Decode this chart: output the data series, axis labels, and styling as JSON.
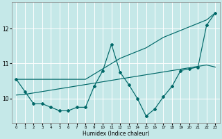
{
  "xlabel": "Humidex (Indice chaleur)",
  "background_color": "#c5e8e8",
  "grid_color": "#ffffff",
  "line_color": "#006868",
  "x_values": [
    0,
    1,
    2,
    3,
    4,
    5,
    6,
    7,
    8,
    9,
    10,
    11,
    12,
    13,
    14,
    15,
    16,
    17,
    18,
    19,
    20,
    21,
    22,
    23
  ],
  "line_jagged_y": [
    10.55,
    10.2,
    9.85,
    9.85,
    9.75,
    9.65,
    9.65,
    9.75,
    9.75,
    10.35,
    10.8,
    11.55,
    10.75,
    10.4,
    10.0,
    9.5,
    9.7,
    10.05,
    10.35,
    10.8,
    10.85,
    10.9,
    12.1,
    12.45
  ],
  "line_steep_y": [
    10.55,
    10.55,
    10.55,
    10.55,
    10.55,
    10.55,
    10.55,
    10.55,
    10.55,
    10.7,
    10.85,
    11.0,
    11.15,
    11.25,
    11.35,
    11.45,
    11.6,
    11.75,
    11.85,
    11.95,
    12.05,
    12.15,
    12.25,
    12.45
  ],
  "line_flat_y": [
    10.1,
    10.12,
    10.16,
    10.2,
    10.24,
    10.28,
    10.32,
    10.36,
    10.4,
    10.44,
    10.48,
    10.52,
    10.56,
    10.6,
    10.64,
    10.68,
    10.72,
    10.76,
    10.8,
    10.84,
    10.88,
    10.92,
    10.96,
    10.9
  ],
  "ylim": [
    9.3,
    12.75
  ],
  "xlim": [
    -0.5,
    23.5
  ],
  "yticks": [
    10,
    11,
    12
  ],
  "xticks": [
    0,
    1,
    2,
    3,
    4,
    5,
    6,
    7,
    8,
    9,
    10,
    11,
    12,
    13,
    14,
    15,
    16,
    17,
    18,
    19,
    20,
    21,
    22,
    23
  ]
}
